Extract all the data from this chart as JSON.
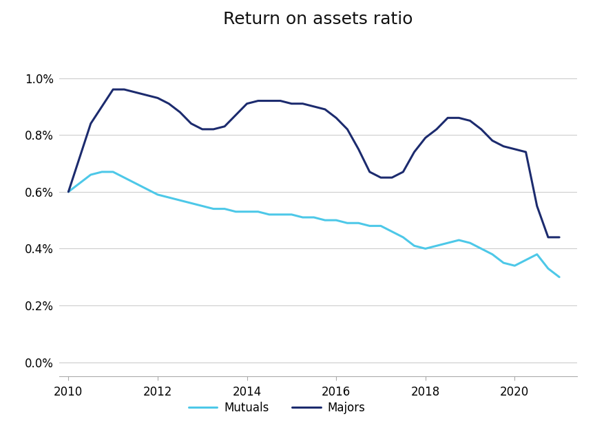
{
  "title": "Return on assets ratio",
  "title_fontsize": 18,
  "mutuals_color": "#4DC8E8",
  "majors_color": "#1C2B6E",
  "line_width": 2.2,
  "ylim": [
    -0.0005,
    0.0115
  ],
  "yticks": [
    0.0,
    0.002,
    0.004,
    0.006,
    0.008,
    0.01
  ],
  "ytick_labels": [
    "0.0%",
    "0.2%",
    "0.4%",
    "0.6%",
    "0.8%",
    "1.0%"
  ],
  "legend_labels": [
    "Mutuals",
    "Majors"
  ],
  "mutuals_x": [
    2010,
    2010.25,
    2010.5,
    2010.75,
    2011,
    2011.25,
    2011.5,
    2011.75,
    2012,
    2012.25,
    2012.5,
    2012.75,
    2013,
    2013.25,
    2013.5,
    2013.75,
    2014,
    2014.25,
    2014.5,
    2014.75,
    2015,
    2015.25,
    2015.5,
    2015.75,
    2016,
    2016.25,
    2016.5,
    2016.75,
    2017,
    2017.25,
    2017.5,
    2017.75,
    2018,
    2018.25,
    2018.5,
    2018.75,
    2019,
    2019.25,
    2019.5,
    2019.75,
    2020,
    2020.25,
    2020.5,
    2020.75,
    2021
  ],
  "mutuals_y": [
    0.006,
    0.0063,
    0.0066,
    0.0067,
    0.0067,
    0.0065,
    0.0063,
    0.0061,
    0.0059,
    0.0058,
    0.0057,
    0.0056,
    0.0055,
    0.0054,
    0.0054,
    0.0053,
    0.0053,
    0.0053,
    0.0052,
    0.0052,
    0.0052,
    0.0051,
    0.0051,
    0.005,
    0.005,
    0.0049,
    0.0049,
    0.0048,
    0.0048,
    0.0046,
    0.0044,
    0.0041,
    0.004,
    0.0041,
    0.0042,
    0.0043,
    0.0042,
    0.004,
    0.0038,
    0.0035,
    0.0034,
    0.0036,
    0.0038,
    0.0033,
    0.003
  ],
  "majors_x": [
    2010,
    2010.25,
    2010.5,
    2010.75,
    2011,
    2011.25,
    2011.5,
    2011.75,
    2012,
    2012.25,
    2012.5,
    2012.75,
    2013,
    2013.25,
    2013.5,
    2013.75,
    2014,
    2014.25,
    2014.5,
    2014.75,
    2015,
    2015.25,
    2015.5,
    2015.75,
    2016,
    2016.25,
    2016.5,
    2016.75,
    2017,
    2017.25,
    2017.5,
    2017.75,
    2018,
    2018.25,
    2018.5,
    2018.75,
    2019,
    2019.25,
    2019.5,
    2019.75,
    2020,
    2020.25,
    2020.5,
    2020.75,
    2021
  ],
  "majors_y": [
    0.006,
    0.0072,
    0.0084,
    0.009,
    0.0096,
    0.0096,
    0.0095,
    0.0094,
    0.0093,
    0.0091,
    0.0088,
    0.0084,
    0.0082,
    0.0082,
    0.0083,
    0.0087,
    0.0091,
    0.0092,
    0.0092,
    0.0092,
    0.0091,
    0.0091,
    0.009,
    0.0089,
    0.0086,
    0.0082,
    0.0075,
    0.0067,
    0.0065,
    0.0065,
    0.0067,
    0.0074,
    0.0079,
    0.0082,
    0.0086,
    0.0086,
    0.0085,
    0.0082,
    0.0078,
    0.0076,
    0.0075,
    0.0074,
    0.0055,
    0.0044,
    0.0044
  ],
  "xticks": [
    2010,
    2012,
    2014,
    2016,
    2018,
    2020
  ],
  "xlim": [
    2009.8,
    2021.4
  ],
  "background_color": "#ffffff",
  "grid_color": "#cccccc",
  "spine_color": "#aaaaaa"
}
